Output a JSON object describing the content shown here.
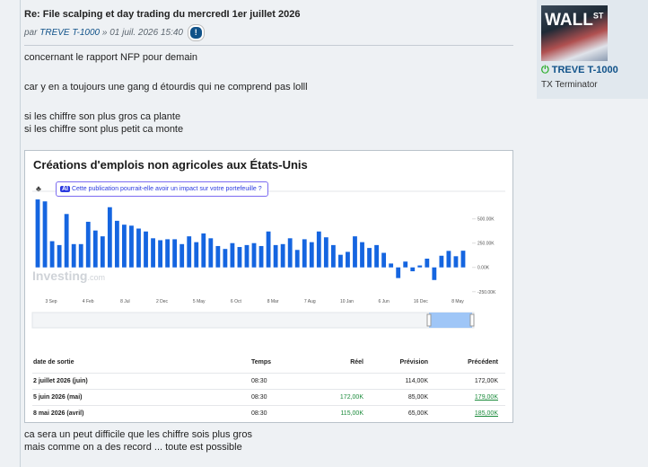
{
  "post": {
    "title": "Re: File scalping et day trading du mercredI 1er juillet 2026",
    "by": "par",
    "author": "TREVE T-1000",
    "date": "» 01 juil. 2026 15:40",
    "lines": [
      "concernant le rapport NFP pour demain",
      "car y en a toujours une gang d étourdis qui ne comprend pas lolll",
      "si les chiffre son plus gros ca plante",
      "si les chiffre sont plus petit ca monte"
    ],
    "after": [
      "ca sera un peut difficile que les chiffre sois plus gros",
      "mais comme on a des record ... toute est possible"
    ]
  },
  "profile": {
    "avatar_text": "WALL",
    "avatar_sup": "ST",
    "name": "TREVE T-1000",
    "rank": "TX Terminator"
  },
  "chart_data": {
    "type": "bar",
    "title": "Créations d'emplois non agricoles aux États-Unis",
    "button": "Cette publication pourrait-elle avoir un impact sur votre portefeuille ?",
    "watermark": "Investing",
    "watermark_sub": ".com",
    "color": "#1565e0",
    "values": [
      700,
      680,
      270,
      230,
      550,
      240,
      240,
      470,
      380,
      320,
      620,
      480,
      440,
      430,
      400,
      370,
      300,
      280,
      290,
      290,
      240,
      320,
      260,
      350,
      300,
      220,
      190,
      250,
      210,
      230,
      250,
      220,
      370,
      230,
      240,
      300,
      180,
      290,
      260,
      370,
      310,
      230,
      130,
      160,
      320,
      260,
      200,
      230,
      150,
      40,
      -110,
      60,
      -40,
      20,
      90,
      -130,
      120,
      170,
      115,
      172
    ],
    "ylim": [
      -280,
      710
    ],
    "yticks": [
      {
        "value": 500,
        "label": "500.00K"
      },
      {
        "value": 250,
        "label": "250.00K"
      },
      {
        "value": 0,
        "label": "0.00K"
      },
      {
        "value": -250,
        "label": "-250.00K"
      }
    ],
    "xlabels": [
      "3 Sep",
      "4 Feb",
      "8 Jul",
      "2 Dec",
      "5 May",
      "6 Oct",
      "8 Mar",
      "7 Aug",
      "10 Jan",
      "6 Jun",
      "16 Dec",
      "8 May"
    ],
    "table": {
      "header": [
        "date de sortie",
        "Temps",
        "Réel",
        "Prévision",
        "Précédent"
      ],
      "rows": [
        [
          "2 juillet 2026 (juin)",
          "08:30",
          null,
          "114,00K",
          "172,00K"
        ],
        [
          "5 juin 2026 (mai)",
          "08:30",
          "172,00K",
          "85,00K",
          "179,00K"
        ],
        [
          "8 mai 2026 (avril)",
          "08:30",
          "115,00K",
          "65,00K",
          "185,00K"
        ]
      ]
    }
  }
}
